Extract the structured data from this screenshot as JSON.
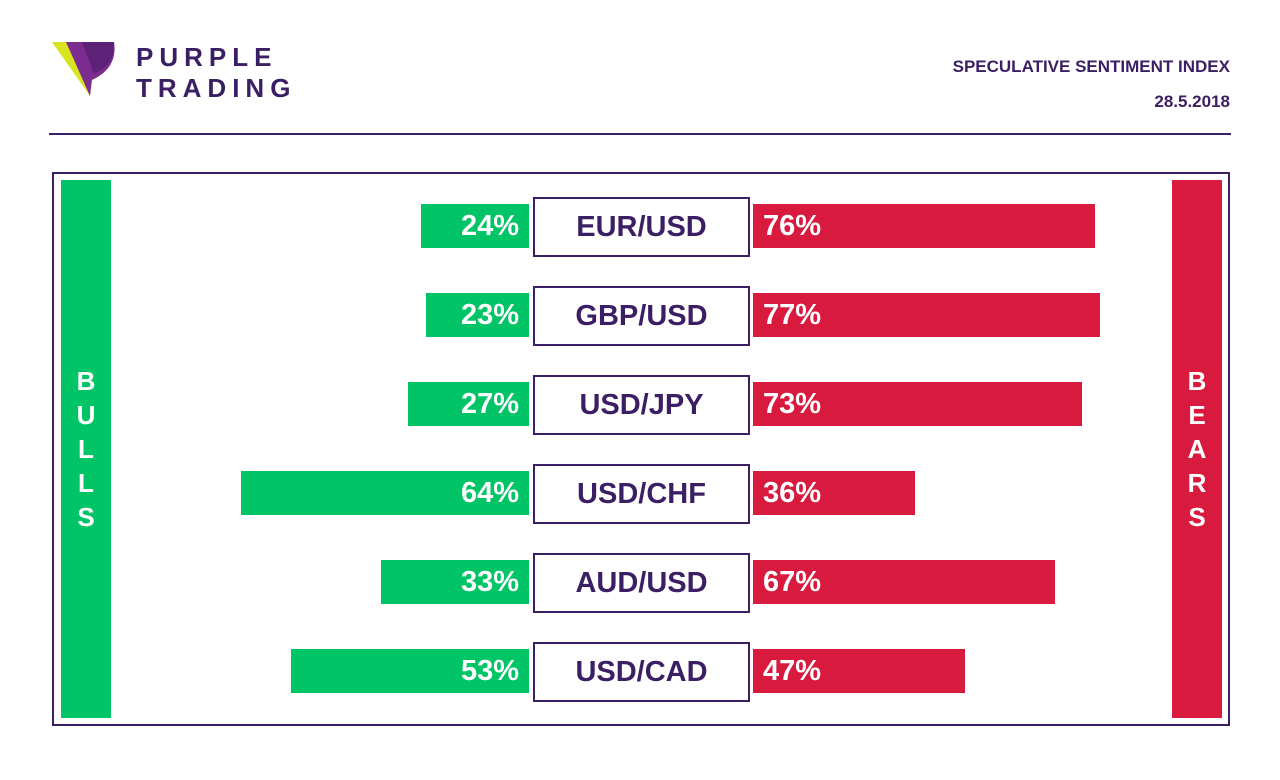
{
  "brand": {
    "line1": "PURPLE",
    "line2": "TRADING",
    "colors": {
      "purple": "#3b1e63",
      "mark_lime": "#d7e41f",
      "mark_violet": "#7c2c8e"
    }
  },
  "header": {
    "title": "SPECULATIVE SENTIMENT INDEX",
    "date": "28.5.2018"
  },
  "sides": {
    "bulls": {
      "letters": [
        "B",
        "U",
        "L",
        "L",
        "S"
      ],
      "color": "#00c465"
    },
    "bears": {
      "letters": [
        "B",
        "E",
        "A",
        "R",
        "S"
      ],
      "color": "#d81a3f"
    }
  },
  "chart_data": {
    "type": "bar",
    "orientation": "horizontal-diverging",
    "categories": [
      "EUR/USD",
      "GBP/USD",
      "USD/JPY",
      "USD/CHF",
      "AUD/USD",
      "USD/CAD"
    ],
    "series": [
      {
        "name": "BULLS",
        "values": [
          24,
          23,
          27,
          64,
          33,
          53
        ],
        "labels": [
          "24%",
          "23%",
          "27%",
          "64%",
          "33%",
          "53%"
        ],
        "color": "#00c465"
      },
      {
        "name": "BEARS",
        "values": [
          76,
          77,
          73,
          36,
          67,
          47
        ],
        "labels": [
          "76%",
          "77%",
          "73%",
          "36%",
          "67%",
          "47%"
        ],
        "color": "#d81a3f"
      }
    ],
    "unit": "%",
    "xlim": [
      0,
      100
    ],
    "grid": false,
    "legend": "none"
  }
}
